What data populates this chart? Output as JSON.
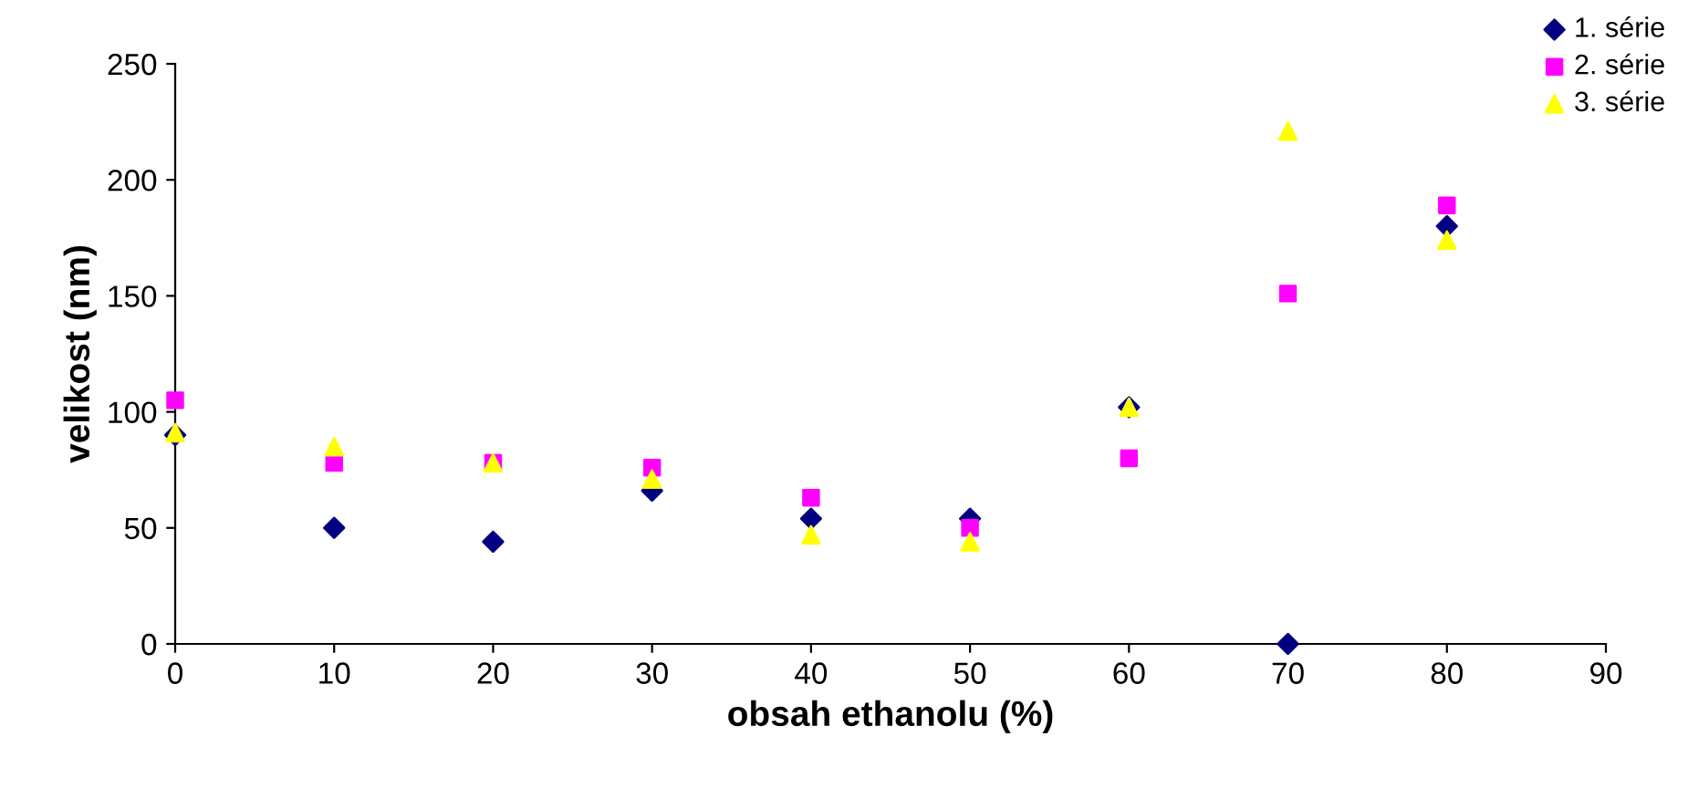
{
  "chart_data": {
    "type": "scatter",
    "xlabel": "obsah ethanolu (%)",
    "ylabel": "velikost (nm)",
    "x": [
      0,
      10,
      20,
      30,
      40,
      50,
      60,
      70,
      80
    ],
    "series": [
      {
        "name": "1. série",
        "color": "#000080",
        "marker": "diamond",
        "values": [
          90,
          50,
          44,
          66,
          54,
          54,
          102,
          0,
          180
        ]
      },
      {
        "name": "2. série",
        "color": "#ff00ff",
        "marker": "square",
        "values": [
          105,
          78,
          78,
          76,
          63,
          50,
          80,
          151,
          189
        ]
      },
      {
        "name": "3. série",
        "color": "#ffff00",
        "marker": "triangle",
        "values": [
          91,
          85,
          78,
          71,
          47,
          44,
          102,
          221,
          174
        ]
      }
    ],
    "xlim": [
      0,
      90
    ],
    "xticks": [
      0,
      10,
      20,
      30,
      40,
      50,
      60,
      70,
      80,
      90
    ],
    "ylim": [
      0,
      250
    ],
    "yticks": [
      0,
      50,
      100,
      150,
      200,
      250
    ],
    "grid": false,
    "legend": "top right"
  }
}
